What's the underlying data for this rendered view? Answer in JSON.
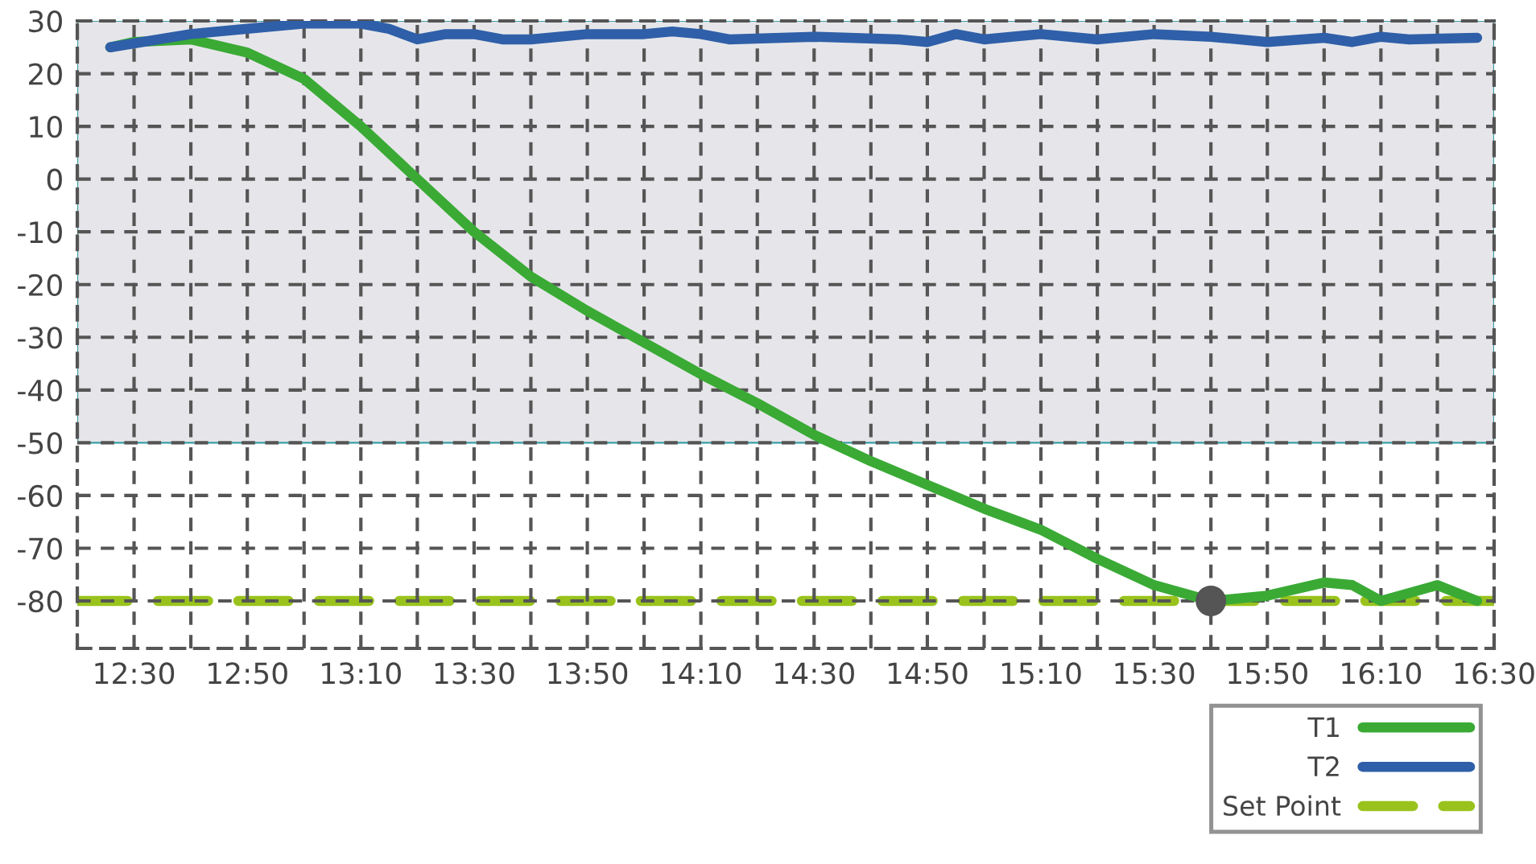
{
  "chart_data": {
    "type": "line",
    "series": [
      {
        "name": "T1",
        "color": "#3aaa35",
        "x": [
          12.43,
          12.5,
          12.667,
          12.833,
          13.0,
          13.167,
          13.333,
          13.5,
          13.667,
          13.833,
          14.0,
          14.167,
          14.333,
          14.5,
          14.667,
          14.833,
          15.0,
          15.167,
          15.333,
          15.5,
          15.667,
          15.833,
          16.0,
          16.083,
          16.167,
          16.333,
          16.45
        ],
        "values": [
          25,
          26,
          26.5,
          24,
          19,
          10,
          0,
          -10,
          -18.5,
          -25,
          -31,
          -37,
          -42.5,
          -48.5,
          -53.5,
          -58,
          -62.5,
          -66.5,
          -72,
          -77,
          -80,
          -79,
          -76.5,
          -77,
          -80,
          -77,
          -80
        ]
      },
      {
        "name": "T2",
        "color": "#2f5fa8",
        "x": [
          12.43,
          12.667,
          12.833,
          13.0,
          13.167,
          13.25,
          13.333,
          13.417,
          13.5,
          13.583,
          13.667,
          13.833,
          14.0,
          14.083,
          14.167,
          14.25,
          14.5,
          14.75,
          14.833,
          14.917,
          15.0,
          15.167,
          15.333,
          15.5,
          15.667,
          15.833,
          16.0,
          16.083,
          16.167,
          16.25,
          16.45
        ],
        "values": [
          25,
          27.5,
          28.5,
          29.5,
          29.5,
          28.5,
          26.5,
          27.5,
          27.5,
          26.5,
          26.5,
          27.5,
          27.5,
          28,
          27.5,
          26.5,
          27,
          26.5,
          26,
          27.5,
          26.5,
          27.5,
          26.5,
          27.5,
          27,
          26,
          26.8,
          26,
          27,
          26.5,
          26.8
        ]
      },
      {
        "type": "scatter",
        "marker": "circle",
        "color": "#555555",
        "x": [
          15.667
        ],
        "values": [
          -80
        ]
      }
    ],
    "ref_lines": [
      {
        "axis": "y",
        "value": -80,
        "label": "Set Point",
        "color": "#99c31c",
        "line_style": "dashed"
      }
    ],
    "bands": [
      {
        "axis": "y",
        "from": -50,
        "to": 30,
        "color": "#e6e6ea"
      }
    ],
    "xlim": [
      12.333,
      16.5
    ],
    "xticks": [
      {
        "value": 12.333,
        "label": null
      },
      {
        "value": 12.5,
        "label": "12:30"
      },
      {
        "value": 12.667,
        "label": null
      },
      {
        "value": 12.833,
        "label": "12:50"
      },
      {
        "value": 13.0,
        "label": null
      },
      {
        "value": 13.167,
        "label": "13:10"
      },
      {
        "value": 13.333,
        "label": null
      },
      {
        "value": 13.5,
        "label": "13:30"
      },
      {
        "value": 13.667,
        "label": null
      },
      {
        "value": 13.833,
        "label": "13:50"
      },
      {
        "value": 14.0,
        "label": null
      },
      {
        "value": 14.167,
        "label": "14:10"
      },
      {
        "value": 14.333,
        "label": null
      },
      {
        "value": 14.5,
        "label": "14:30"
      },
      {
        "value": 14.667,
        "label": null
      },
      {
        "value": 14.833,
        "label": "14:50"
      },
      {
        "value": 15.0,
        "label": null
      },
      {
        "value": 15.167,
        "label": "15:10"
      },
      {
        "value": 15.333,
        "label": null
      },
      {
        "value": 15.5,
        "label": "15:30"
      },
      {
        "value": 15.667,
        "label": null
      },
      {
        "value": 15.833,
        "label": "15:50"
      },
      {
        "value": 16.0,
        "label": null
      },
      {
        "value": 16.167,
        "label": "16:10"
      },
      {
        "value": 16.333,
        "label": null
      },
      {
        "value": 16.5,
        "label": "16:30"
      }
    ],
    "ylim": [
      -89,
      30
    ],
    "yticks": [
      30,
      20,
      10,
      0,
      -10,
      -20,
      -30,
      -40,
      -50,
      -60,
      -70,
      -80
    ],
    "grid": true,
    "legend": "bottom right",
    "marker": "none",
    "line_style": "solid"
  }
}
